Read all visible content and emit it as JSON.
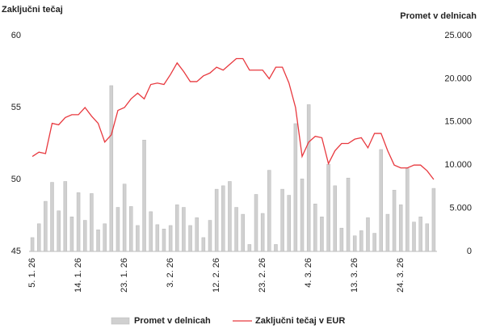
{
  "chart_data": {
    "type": "combo",
    "y_label": "Zaključni tečaj",
    "y2_label": "Promet v delnicah",
    "categories": [
      "5. 1. 26",
      null,
      null,
      null,
      null,
      null,
      null,
      "14. 1. 26",
      null,
      null,
      null,
      null,
      null,
      null,
      "23. 1. 26",
      null,
      null,
      null,
      null,
      null,
      null,
      "3. 2. 26",
      null,
      null,
      null,
      null,
      null,
      null,
      "12. 2. 26",
      null,
      null,
      null,
      null,
      null,
      null,
      "23. 2. 26",
      null,
      null,
      null,
      null,
      null,
      null,
      "4. 3. 26",
      null,
      null,
      null,
      null,
      null,
      null,
      "13. 3. 26",
      null,
      null,
      null,
      null,
      null,
      null,
      "24. 3. 26",
      null,
      null,
      null,
      null,
      null
    ],
    "series": [
      {
        "name": "Promet v delnicah",
        "type": "bar",
        "axis": "y2",
        "color": "#d0d0d0",
        "values": [
          1600,
          3200,
          5800,
          8000,
          4700,
          8100,
          4000,
          6800,
          3600,
          6700,
          2500,
          3200,
          19200,
          5100,
          7800,
          5200,
          3000,
          12900,
          4600,
          3100,
          2600,
          3000,
          5400,
          5100,
          3000,
          3900,
          1600,
          3600,
          7200,
          7600,
          8100,
          5100,
          4300,
          800,
          6600,
          4400,
          9400,
          800,
          7200,
          6500,
          14800,
          8400,
          17000,
          5500,
          4000,
          10100,
          7600,
          2700,
          8500,
          1800,
          2400,
          3900,
          2100,
          11800,
          4300,
          7100,
          5400,
          9600,
          3400,
          4000,
          3200,
          7300
        ]
      },
      {
        "name": "Zaključni tečaj v EUR",
        "type": "line",
        "axis": "y",
        "color": "#e8393f",
        "values": [
          51.6,
          51.9,
          51.8,
          53.9,
          53.8,
          54.3,
          54.5,
          54.5,
          55.0,
          54.4,
          53.9,
          52.6,
          53.1,
          54.8,
          55.0,
          55.6,
          56.0,
          55.6,
          56.6,
          56.7,
          56.6,
          57.3,
          58.1,
          57.5,
          56.8,
          56.8,
          57.2,
          57.4,
          57.8,
          57.6,
          58.0,
          58.4,
          58.4,
          57.6,
          57.6,
          57.6,
          57.0,
          57.8,
          57.8,
          56.7,
          55.0,
          51.6,
          52.6,
          53.0,
          52.9,
          51.1,
          52.0,
          52.5,
          52.5,
          52.8,
          52.9,
          52.2,
          53.2,
          53.2,
          52.0,
          51.0,
          50.8,
          50.8,
          51.0,
          51.0,
          50.6,
          50.0
        ]
      }
    ],
    "ylim": [
      45,
      60
    ],
    "yticks": [
      45,
      50,
      55,
      60
    ],
    "y2lim": [
      0,
      25000
    ],
    "y2ticks": [
      0,
      {
        "value": 5000,
        "label": "5.000"
      },
      {
        "value": 10000,
        "label": "10.000"
      },
      {
        "value": 15000,
        "label": "15.000"
      },
      {
        "value": 20000,
        "label": "20.000"
      },
      {
        "value": 25000,
        "label": "25.000"
      }
    ],
    "legend": "bottom"
  }
}
